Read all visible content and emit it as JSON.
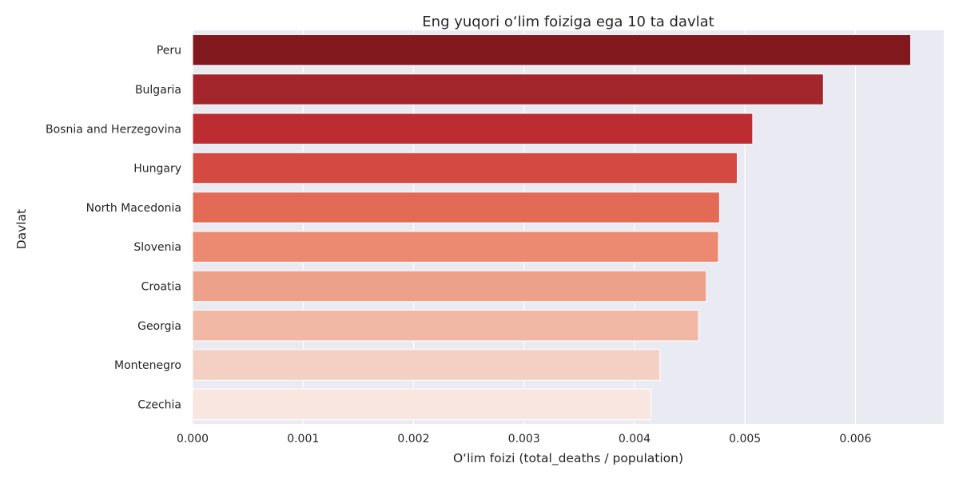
{
  "chart_data": {
    "type": "bar",
    "orientation": "horizontal",
    "title": "Eng yuqori o‘lim foiziga ega 10 ta davlat",
    "xlabel": "O‘lim foizi (total_deaths / population)",
    "ylabel": "Davlat",
    "xlim": [
      0,
      0.0068
    ],
    "x_ticks": [
      0.0,
      0.001,
      0.002,
      0.003,
      0.004,
      0.005,
      0.006
    ],
    "x_tick_labels": [
      "0.000",
      "0.001",
      "0.002",
      "0.003",
      "0.004",
      "0.005",
      "0.006"
    ],
    "grid": true,
    "categories": [
      "Peru",
      "Bulgaria",
      "Bosnia and Herzegovina",
      "Hungary",
      "North Macedonia",
      "Slovenia",
      "Croatia",
      "Georgia",
      "Montenegro",
      "Czechia"
    ],
    "values": [
      0.0065,
      0.00571,
      0.00507,
      0.00493,
      0.00477,
      0.00476,
      0.00465,
      0.00458,
      0.00423,
      0.00415
    ],
    "colors": [
      "#82191f",
      "#a3262d",
      "#bc2d32",
      "#d44a43",
      "#e36a55",
      "#eb8a71",
      "#eda18a",
      "#f0b8a5",
      "#f4d0c4",
      "#fae6e0"
    ]
  }
}
